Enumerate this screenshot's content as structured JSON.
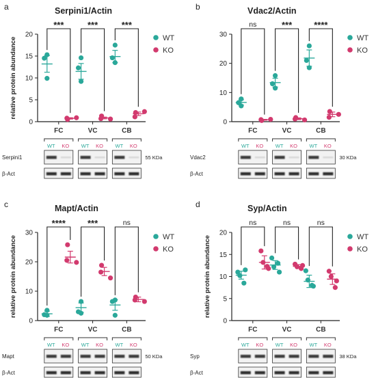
{
  "colors": {
    "wt": "#2aa89a",
    "ko": "#d23a6e",
    "axis": "#222222",
    "band": "#1a1a1a"
  },
  "chart_data": [
    {
      "panel_letter": "a",
      "type": "scatter",
      "title": "Serpini1/Actin",
      "ylabel": "relative protein abundance",
      "ylim": [
        0,
        20
      ],
      "yticks": [
        0,
        5,
        10,
        15,
        20
      ],
      "categories": [
        "FC",
        "VC",
        "CB"
      ],
      "legend": [
        "WT",
        "KO"
      ],
      "series": [
        {
          "name": "WT",
          "points": [
            [
              15.3,
              14.5,
              9.9
            ],
            [
              14.6,
              12.3,
              9.2
            ],
            [
              17.5,
              14.6,
              13.5
            ]
          ],
          "mean": [
            13.2,
            11.5,
            14.9
          ],
          "sem": [
            1.9,
            1.8,
            1.4
          ]
        },
        {
          "name": "KO",
          "points": [
            [
              0.5,
              0.8,
              0.9
            ],
            [
              1.3,
              0.7,
              0.6
            ],
            [
              2.1,
              1.1,
              2.3
            ]
          ],
          "mean": [
            0.75,
            0.85,
            1.8
          ],
          "sem": [
            0.15,
            0.2,
            0.4
          ]
        }
      ],
      "significance": [
        "***",
        "***",
        "***"
      ],
      "blot": {
        "wt_label": "WT",
        "ko_label": "KO",
        "rows": [
          "Serpini1",
          "β-Act"
        ],
        "size": "55 KDa",
        "ko_present": false
      }
    },
    {
      "panel_letter": "b",
      "type": "scatter",
      "title": "Vdac2/Actin",
      "ylabel": "",
      "ylim": [
        0,
        30
      ],
      "yticks": [
        0,
        10,
        20,
        30
      ],
      "categories": [
        "FC",
        "VC",
        "CB"
      ],
      "legend": [
        "WT",
        "KO"
      ],
      "series": [
        {
          "name": "WT",
          "points": [
            [
              7.8,
              6.5,
              5.4
            ],
            [
              15.8,
              13.0,
              11.5
            ],
            [
              26.0,
              21.0,
              18.5
            ]
          ],
          "mean": [
            6.6,
            13.4,
            21.8
          ],
          "sem": [
            0.9,
            1.5,
            2.8
          ]
        },
        {
          "name": "KO",
          "points": [
            [
              0.4,
              0.7,
              0.8
            ],
            [
              1.4,
              0.9,
              0.6
            ],
            [
              3.5,
              1.5,
              2.5
            ]
          ],
          "mean": [
            0.65,
            1.0,
            2.5
          ],
          "sem": [
            0.15,
            0.3,
            0.8
          ]
        }
      ],
      "significance": [
        "ns",
        "***",
        "****"
      ],
      "blot": {
        "wt_label": "WT",
        "ko_label": "KO",
        "rows": [
          "Vdac2",
          "β-Act"
        ],
        "size": "30 KDa",
        "ko_present": false
      }
    },
    {
      "panel_letter": "c",
      "type": "scatter",
      "title": "Mapt/Actin",
      "ylabel": "relative protein abundance",
      "ylim": [
        0,
        30
      ],
      "yticks": [
        0,
        10,
        20,
        30
      ],
      "categories": [
        "FC",
        "VC",
        "CB"
      ],
      "legend": [
        "WT",
        "KO"
      ],
      "series": [
        {
          "name": "WT",
          "points": [
            [
              3.5,
              2.0,
              1.8
            ],
            [
              6.5,
              3.0,
              2.5
            ],
            [
              7.0,
              6.5,
              1.8
            ]
          ],
          "mean": [
            2.3,
            4.4,
            5.3
          ],
          "sem": [
            0.9,
            1.6,
            1.8
          ]
        },
        {
          "name": "KO",
          "points": [
            [
              25.8,
              20.5,
              19.8
            ],
            [
              18.8,
              16.5,
              14.5
            ],
            [
              8.0,
              7.0,
              6.5
            ]
          ],
          "mean": [
            21.6,
            16.7,
            7.2
          ],
          "sem": [
            2.0,
            1.4,
            0.8
          ]
        }
      ],
      "significance": [
        "****",
        "***",
        "ns"
      ],
      "blot": {
        "wt_label": "WT",
        "ko_label": "KO",
        "rows": [
          "Mapt",
          "β-Act"
        ],
        "size": "50 KDa",
        "ko_present": true
      }
    },
    {
      "panel_letter": "d",
      "type": "scatter",
      "title": "Syp/Actin",
      "ylabel": "relative protein abundance",
      "ylim": [
        0,
        20
      ],
      "yticks": [
        0,
        5,
        10,
        15,
        20
      ],
      "categories": [
        "FC",
        "VC",
        "CB"
      ],
      "legend": [
        "WT",
        "KO"
      ],
      "series": [
        {
          "name": "WT",
          "points": [
            [
              11.0,
              10.2,
              8.5,
              11.5
            ],
            [
              14.2,
              12.2,
              13.0,
              11.0
            ],
            [
              11.3,
              9.2,
              8.0,
              7.8
            ]
          ],
          "mean": [
            10.3,
            12.6,
            8.9
          ],
          "sem": [
            0.9,
            1.0,
            1.4
          ]
        },
        {
          "name": "KO",
          "points": [
            [
              15.8,
              13.2,
              12.3,
              11.8
            ],
            [
              12.8,
              12.2,
              11.8,
              12.5
            ],
            [
              11.2,
              10.0,
              7.5,
              9.0
            ]
          ],
          "mean": [
            13.2,
            12.3,
            9.4
          ],
          "sem": [
            1.5,
            0.4,
            1.2
          ]
        }
      ],
      "significance": [
        "ns",
        "ns",
        "ns"
      ],
      "blot": {
        "wt_label": "WT",
        "ko_label": "KO",
        "rows": [
          "Syp",
          "β-Act"
        ],
        "size": "38 KDa",
        "ko_present": true
      }
    }
  ]
}
